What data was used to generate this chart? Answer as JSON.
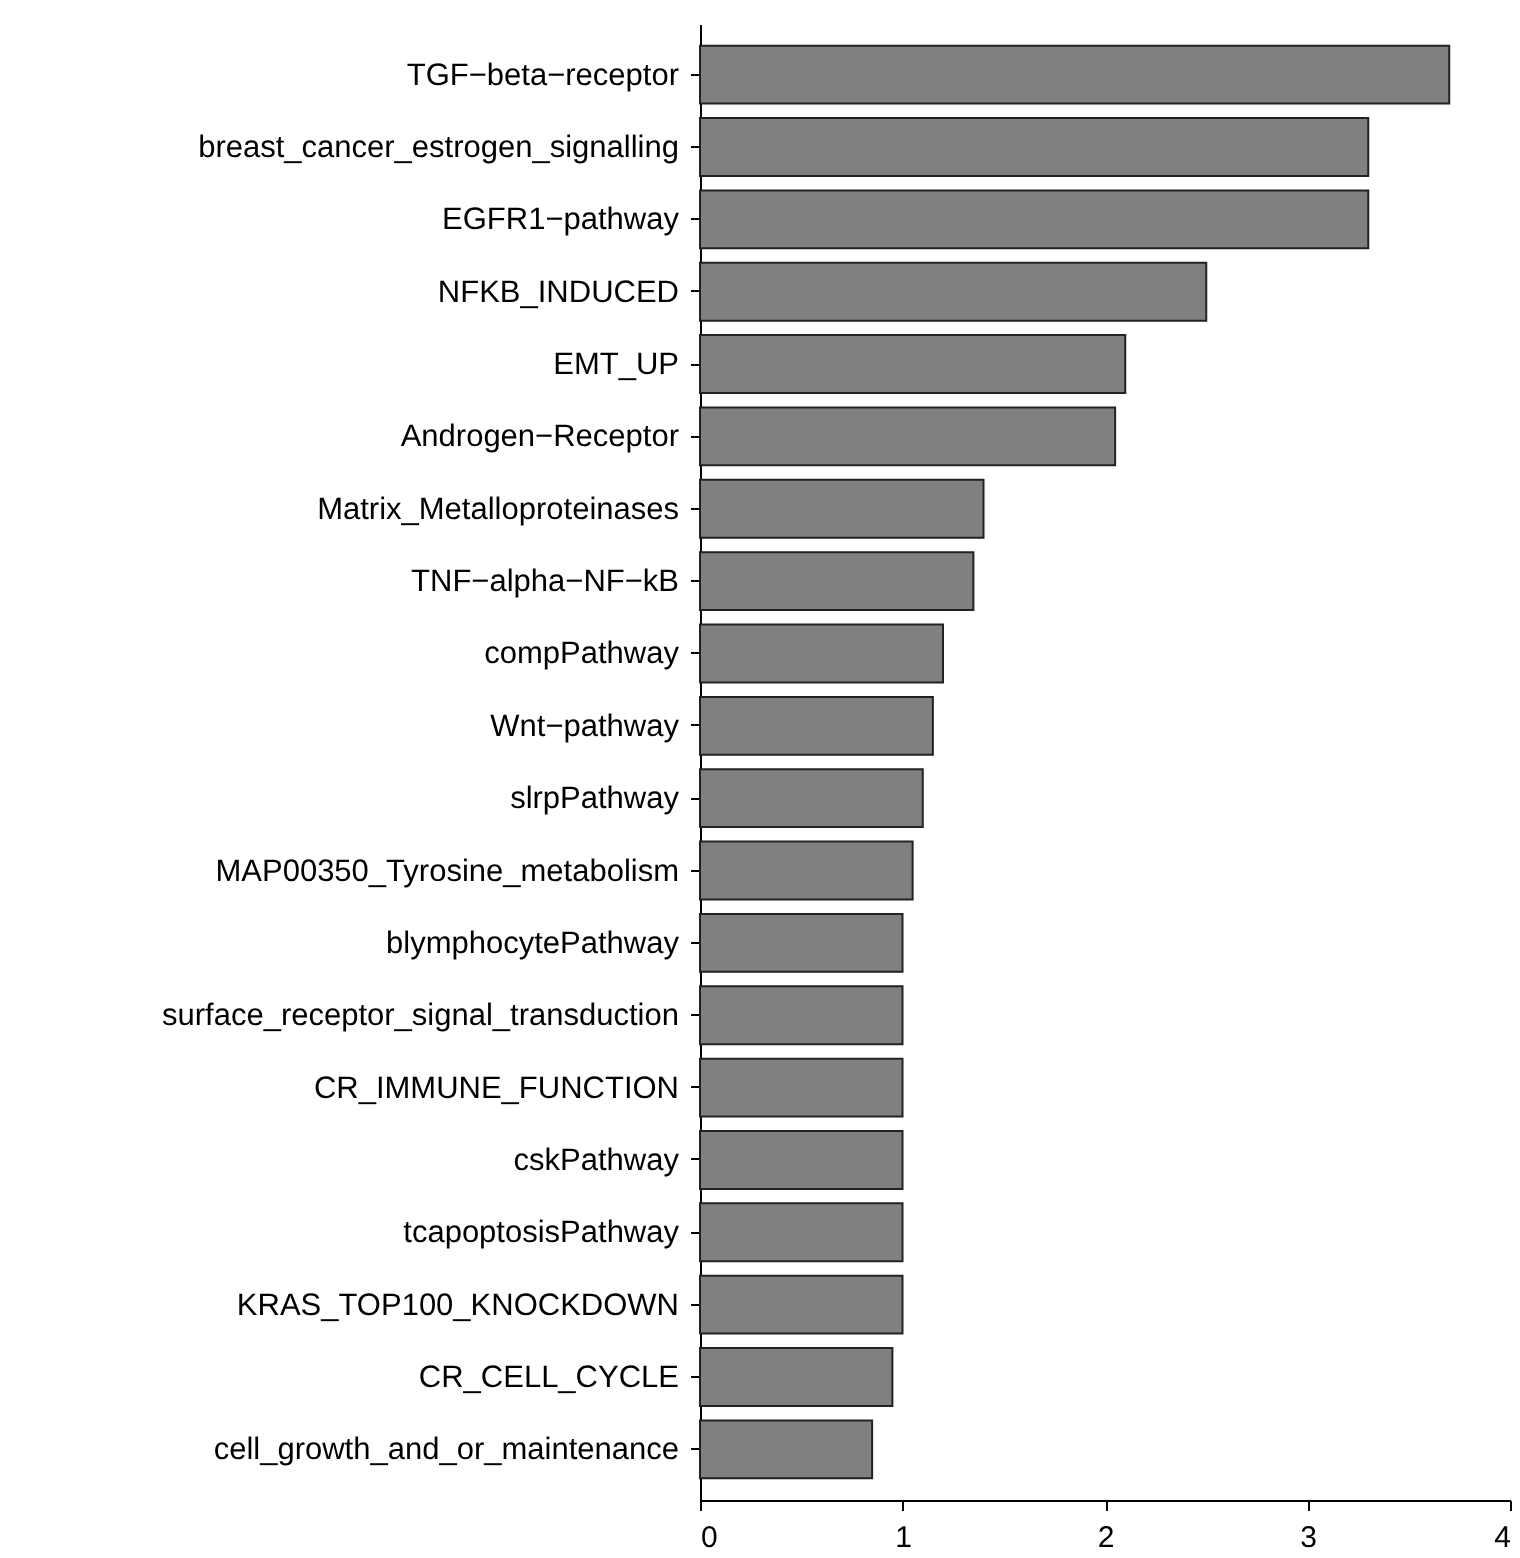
{
  "chart_data": {
    "type": "bar",
    "orientation": "horizontal",
    "categories": [
      "TGF−beta−receptor",
      "breast_cancer_estrogen_signalling",
      "EGFR1−pathway",
      "NFKB_INDUCED",
      "EMT_UP",
      "Androgen−Receptor",
      "Matrix_Metalloproteinases",
      "TNF−alpha−NF−kB",
      "compPathway",
      "Wnt−pathway",
      "slrpPathway",
      "MAP00350_Tyrosine_metabolism",
      "blymphocytePathway",
      "surface_receptor_signal_transduction",
      "CR_IMMUNE_FUNCTION",
      "cskPathway",
      "tcapoptosisPathway",
      "KRAS_TOP100_KNOCKDOWN",
      "CR_CELL_CYCLE",
      "cell_growth_and_or_maintenance"
    ],
    "values": [
      3.7,
      3.3,
      3.3,
      2.5,
      2.1,
      2.05,
      1.4,
      1.35,
      1.2,
      1.15,
      1.1,
      1.05,
      1.0,
      1.0,
      1.0,
      1.0,
      1.0,
      1.0,
      0.95,
      0.85
    ],
    "color": "#808080",
    "xlim": [
      0,
      4
    ],
    "xticks": [
      0,
      1,
      2,
      3,
      4
    ],
    "grid": false
  }
}
